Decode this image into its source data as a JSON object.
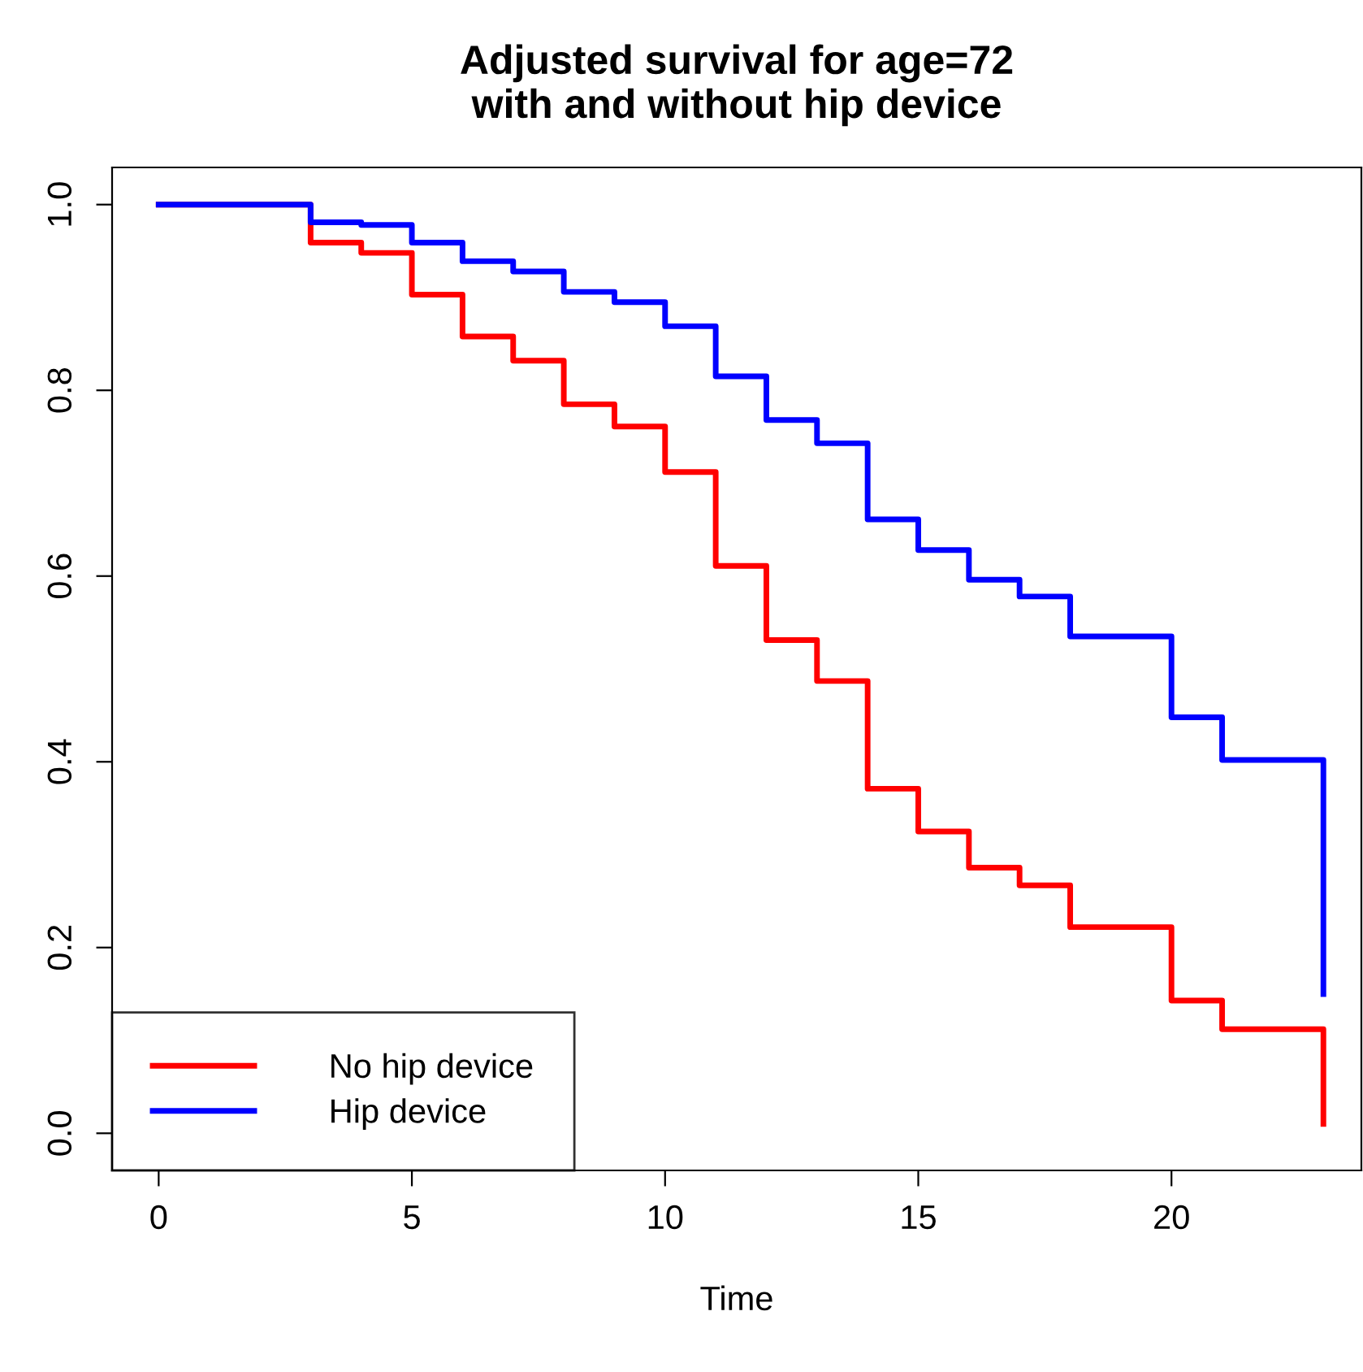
{
  "chart_data": {
    "type": "step",
    "title": "Adjusted survival for age=72\nwith and without hip device",
    "xlabel": "Time",
    "x": [
      0,
      3,
      4,
      5,
      6,
      7,
      8,
      9,
      10,
      11,
      12,
      13,
      14,
      15,
      16,
      17,
      18,
      20,
      21,
      23
    ],
    "series": [
      {
        "name": "No hip device",
        "color": "#ff0000",
        "values": [
          1.0,
          0.959,
          0.948,
          0.903,
          0.858,
          0.832,
          0.785,
          0.761,
          0.712,
          0.611,
          0.531,
          0.487,
          0.371,
          0.325,
          0.286,
          0.267,
          0.222,
          0.143,
          0.112,
          0.01
        ]
      },
      {
        "name": "Hip device",
        "color": "#0000ff",
        "values": [
          1.0,
          0.981,
          0.978,
          0.959,
          0.939,
          0.928,
          0.906,
          0.895,
          0.869,
          0.815,
          0.768,
          0.743,
          0.661,
          0.628,
          0.596,
          0.578,
          0.535,
          0.448,
          0.402,
          0.15
        ]
      }
    ],
    "xlim": [
      -0.92,
      23.75
    ],
    "ylim": [
      -0.04,
      1.04
    ],
    "xticks": [
      0,
      5,
      10,
      15,
      20
    ],
    "yticks": [
      {
        "value": 0,
        "label": "0.0"
      },
      0.2,
      0.4,
      0.6,
      0.8,
      {
        "value": 1,
        "label": "1.0"
      }
    ],
    "grid": false,
    "legend": "bottom left",
    "line_style": "solid",
    "marker": "none"
  }
}
